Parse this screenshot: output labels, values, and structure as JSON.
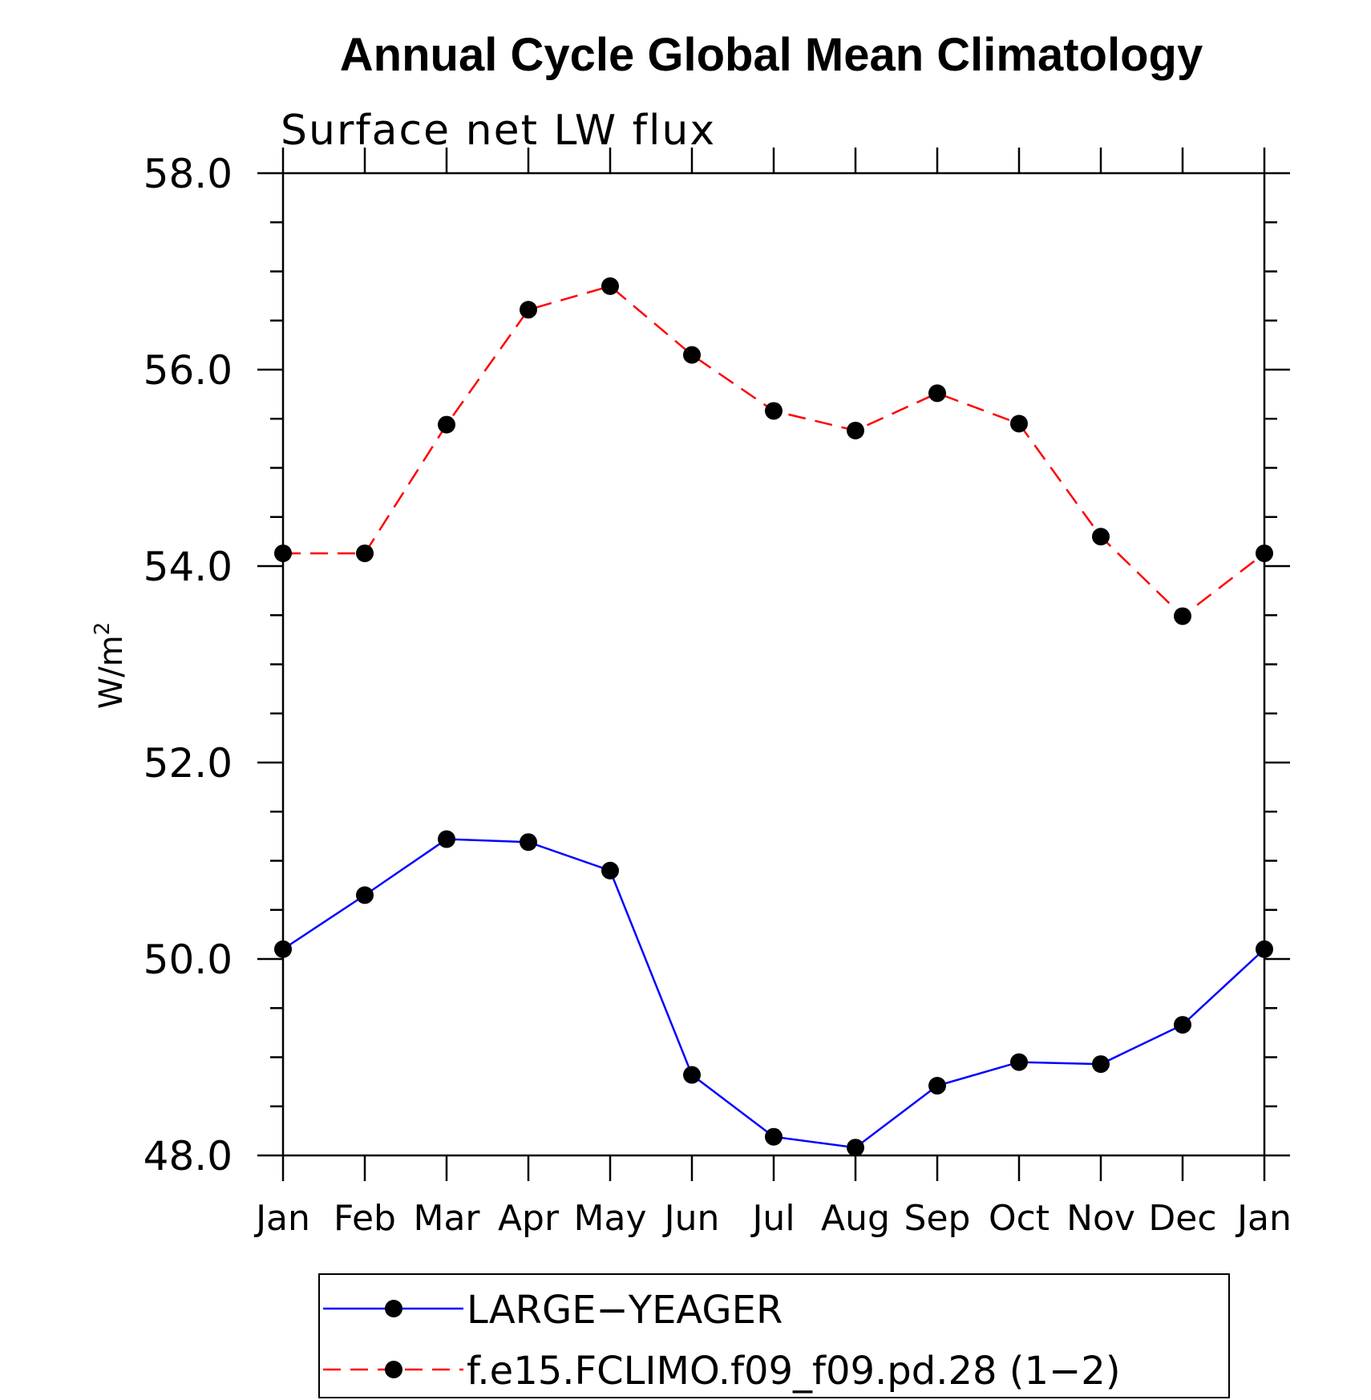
{
  "chart_data": {
    "type": "line",
    "title": "Annual Cycle Global Mean Climatology",
    "subtitle": "Surface net LW flux",
    "ylabel": "W/m",
    "ylabel_sup": "2",
    "ylim": [
      48.0,
      58.0
    ],
    "yticks": [
      "48.0",
      "50.0",
      "52.0",
      "54.0",
      "56.0",
      "58.0"
    ],
    "categories": [
      "Jan",
      "Feb",
      "Mar",
      "Apr",
      "May",
      "Jun",
      "Jul",
      "Aug",
      "Sep",
      "Oct",
      "Nov",
      "Dec",
      "Jan"
    ],
    "series": [
      {
        "name": "LARGE−YEAGER",
        "color": "#0000ff",
        "style": "solid",
        "values": [
          50.1,
          50.65,
          51.22,
          51.19,
          50.9,
          48.82,
          48.19,
          48.08,
          48.71,
          48.95,
          48.93,
          49.33,
          50.1
        ]
      },
      {
        "name": "f.e15.FCLIMO.f09_f09.pd.28 (1−2)",
        "color": "#ff0000",
        "style": "dashed",
        "values": [
          54.13,
          54.13,
          55.44,
          56.61,
          56.85,
          56.15,
          55.58,
          55.38,
          55.76,
          55.45,
          54.3,
          53.49,
          54.13
        ]
      }
    ],
    "legend_position": "bottom"
  }
}
